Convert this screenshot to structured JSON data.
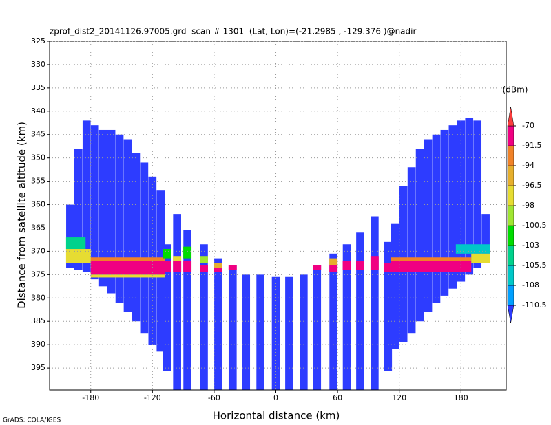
{
  "chart_data": {
    "type": "profile",
    "title": "zprof_dist2_20141126.97005.grd  scan # 1301  (Lat, Lon)=(-21.2985 , -129.376 )@nadir",
    "xlabel": "Horizontal distance (km)",
    "ylabel": "Distance from satellite altitude (km)",
    "footer": "GrADS: COLA/IGES",
    "colorbar_label": "(dBm)",
    "xlim": [
      -220,
      224
    ],
    "ylim": [
      325,
      399.7
    ],
    "y_inverted": true,
    "grid": true,
    "xticks": [
      -180,
      -120,
      -60,
      0,
      60,
      120,
      180
    ],
    "yticks": [
      325,
      330,
      335,
      340,
      345,
      350,
      355,
      360,
      365,
      370,
      375,
      380,
      385,
      390,
      395
    ],
    "levels": [
      -110.5,
      -108,
      -105.5,
      -103,
      -100.5,
      -98,
      -96.5,
      -94,
      -91.5,
      -70
    ],
    "colors": [
      "#2d3cff",
      "#00a0ff",
      "#00c8c8",
      "#00d28c",
      "#00dc00",
      "#a0e632",
      "#e6dc32",
      "#e6af2d",
      "#f08228",
      "#f00082",
      "#fa3c3c"
    ],
    "columns": [
      [
        -200,
        360,
        373.5
      ],
      [
        -192,
        348,
        374
      ],
      [
        -184,
        342,
        374.5
      ],
      [
        -176,
        343,
        376
      ],
      [
        -168,
        344,
        377.5
      ],
      [
        -160,
        344,
        379
      ],
      [
        -152,
        345,
        381
      ],
      [
        -144,
        346,
        383
      ],
      [
        -136,
        349,
        385
      ],
      [
        -128,
        351,
        387.5
      ],
      [
        -120,
        354,
        390
      ],
      [
        -112,
        357,
        391.5
      ],
      [
        -106,
        368.5,
        395.7
      ],
      [
        -96,
        362,
        399.7
      ],
      [
        -86,
        365.5,
        399.7
      ],
      [
        -70,
        368.5,
        399.7
      ],
      [
        -56,
        371.5,
        399.7
      ],
      [
        -42,
        373,
        399.7
      ],
      [
        -29,
        375,
        399.7
      ],
      [
        -15,
        375,
        399.7
      ],
      [
        0,
        375.5,
        399.7
      ],
      [
        13,
        375.5,
        399.7
      ],
      [
        27,
        375,
        399.7
      ],
      [
        40,
        373,
        399.7
      ],
      [
        56,
        370.5,
        399.7
      ],
      [
        69,
        368.5,
        399.7
      ],
      [
        82,
        366,
        399.7
      ],
      [
        96,
        362.5,
        399.7
      ],
      [
        109,
        368,
        395.7
      ],
      [
        116,
        364,
        391
      ],
      [
        124,
        356,
        389.5
      ],
      [
        132,
        352,
        387.5
      ],
      [
        140,
        348,
        385
      ],
      [
        148,
        346,
        383
      ],
      [
        156,
        345,
        381
      ],
      [
        164,
        344,
        379.5
      ],
      [
        172,
        343,
        378
      ],
      [
        180,
        342,
        376.5
      ],
      [
        188,
        341.5,
        375
      ],
      [
        196,
        342,
        373.5
      ],
      [
        204,
        362,
        372.5
      ]
    ],
    "echoes": [
      [
        -204,
        -185,
        367,
        369.5,
        -104
      ],
      [
        -204,
        -180,
        369.5,
        372.5,
        -97
      ],
      [
        -180,
        -108,
        371.3,
        372,
        -93
      ],
      [
        -180,
        -108,
        372,
        375,
        -85
      ],
      [
        -180,
        -108,
        375,
        375.6,
        -97
      ],
      [
        -110,
        -102,
        369.5,
        371.5,
        -101
      ],
      [
        -110,
        -102,
        372,
        374.5,
        -88
      ],
      [
        -100,
        -92,
        371,
        372,
        -97
      ],
      [
        -100,
        -92,
        372,
        374.5,
        -88
      ],
      [
        -90,
        -82,
        369,
        371.5,
        -101
      ],
      [
        -90,
        -82,
        372,
        374.5,
        -88
      ],
      [
        -74,
        -66,
        371,
        372.5,
        -99
      ],
      [
        -74,
        -66,
        373,
        374.5,
        -88
      ],
      [
        -60,
        -52,
        372.5,
        373.5,
        -96
      ],
      [
        -60,
        -52,
        373.5,
        374.5,
        -88
      ],
      [
        -46,
        -38,
        373,
        374,
        -88
      ],
      [
        36,
        44,
        373,
        374,
        -88
      ],
      [
        52,
        60,
        371.5,
        373,
        -96
      ],
      [
        52,
        60,
        373,
        374.5,
        -88
      ],
      [
        65,
        73,
        372,
        374,
        -88
      ],
      [
        78,
        86,
        372,
        374,
        -88
      ],
      [
        92,
        100,
        371,
        374,
        -88
      ],
      [
        105,
        113,
        372.5,
        374.5,
        -88
      ],
      [
        112,
        190,
        371.3,
        372,
        -93
      ],
      [
        112,
        190,
        372,
        374.5,
        -85
      ],
      [
        175,
        208,
        368.5,
        370.5,
        -106
      ],
      [
        190,
        208,
        370.5,
        372.5,
        -97
      ]
    ]
  }
}
